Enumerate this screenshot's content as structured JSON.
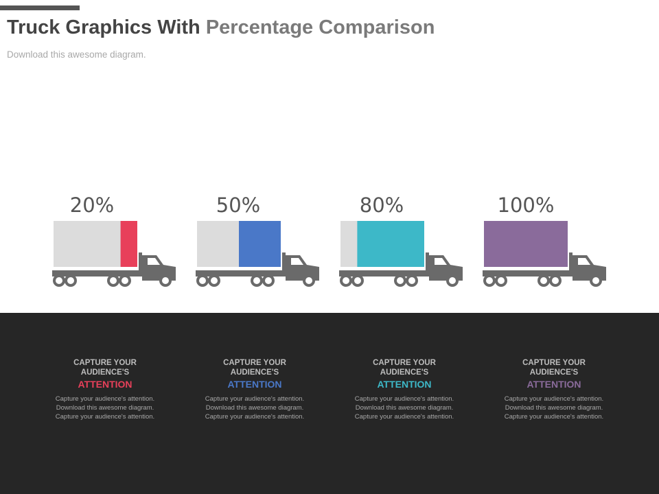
{
  "header": {
    "title_part_1": "Truck Graphics With",
    "title_part_2": "Percentage Comparison",
    "subtitle": "Download this awesome diagram."
  },
  "colors": {
    "truck_body": "#6a6a6a",
    "trailer_empty": "#dcdcdc",
    "panel_bg": "#262626"
  },
  "chart_data": {
    "type": "bar",
    "categories": [
      "",
      "",
      "",
      ""
    ],
    "values": [
      20,
      50,
      80,
      100
    ],
    "labels": [
      "20%",
      "50%",
      "80%",
      "100%"
    ],
    "colors": [
      "#e8405a",
      "#4a78c8",
      "#3db8c8",
      "#8a6b9b"
    ],
    "ylim": [
      0,
      100
    ]
  },
  "cards": [
    {
      "heading": "CAPTURE YOUR AUDIENCE'S",
      "emphasis": "ATTENTION",
      "body": "Capture your audience's attention. Download this awesome diagram. Capture your audience's attention.",
      "color": "#e8405a"
    },
    {
      "heading": "CAPTURE YOUR AUDIENCE'S",
      "emphasis": "ATTENTION",
      "body": "Capture your audience's attention. Download this awesome diagram. Capture your audience's attention.",
      "color": "#4a78c8"
    },
    {
      "heading": "CAPTURE YOUR AUDIENCE'S",
      "emphasis": "ATTENTION",
      "body": "Capture your audience's attention. Download this awesome diagram. Capture your audience's attention.",
      "color": "#3db8c8"
    },
    {
      "heading": "CAPTURE YOUR AUDIENCE'S",
      "emphasis": "ATTENTION",
      "body": "Capture your audience's attention. Download this awesome diagram. Capture your audience's attention.",
      "color": "#8a6b9b"
    }
  ]
}
